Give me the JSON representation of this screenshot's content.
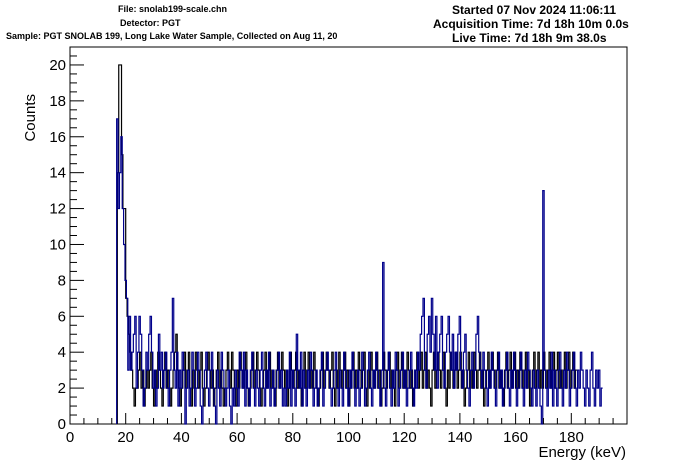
{
  "header": {
    "file": "File: snolab199-scale.chn",
    "detector": "Detector: PGT",
    "sample": "Sample: PGT SNOLAB 199, Long Lake Water Sample, Collected on Aug 11, 20",
    "started": "Started 07 Nov 2024 11:06:11",
    "acquisition": "Acquisition Time: 7d 18h 10m 0.0s",
    "live": "Live Time: 7d 18h 9m 38.0s"
  },
  "chart_data": {
    "type": "step-histogram",
    "xlabel": "Energy (keV)",
    "ylabel": "Counts",
    "xlim": [
      0,
      200
    ],
    "ylim": [
      0,
      21
    ],
    "x_ticks": [
      0,
      20,
      40,
      60,
      80,
      100,
      120,
      140,
      160,
      180
    ],
    "y_ticks": [
      0,
      2,
      4,
      6,
      8,
      10,
      12,
      14,
      16,
      18,
      20
    ],
    "grid": false,
    "series": [
      {
        "color": "#000000",
        "bin_start": 17.0,
        "bin_width": 0.5,
        "values": [
          14,
          20,
          20,
          15,
          12,
          12,
          7,
          6,
          5,
          4,
          3,
          2,
          1,
          2,
          2,
          3,
          4,
          2,
          3,
          1,
          2,
          3,
          2,
          3,
          4,
          2,
          1,
          3,
          2,
          4,
          3,
          2,
          1,
          3,
          4,
          2,
          3,
          2,
          1,
          2,
          3,
          4,
          5,
          3,
          2,
          1,
          2,
          3,
          4,
          2,
          3,
          4,
          2,
          1,
          3,
          2,
          4,
          3,
          2,
          3,
          4,
          2,
          1,
          2,
          3,
          4,
          3,
          2,
          3,
          1,
          2,
          3,
          4,
          2,
          3,
          2,
          1,
          2,
          3,
          4,
          3,
          2,
          4,
          3,
          2,
          1,
          3,
          2,
          4,
          3,
          2,
          3,
          4,
          2,
          1,
          2,
          3,
          4,
          2,
          3,
          4,
          3,
          2,
          1,
          2,
          3,
          4,
          2,
          3,
          4,
          2,
          3,
          2,
          1,
          3,
          4,
          2,
          3,
          4,
          3,
          2,
          3,
          1,
          2,
          4,
          3,
          2,
          3,
          4,
          2,
          3,
          2,
          1,
          3,
          4,
          2,
          3,
          4,
          2,
          3,
          2,
          4,
          3,
          2,
          1,
          2,
          3,
          4,
          2,
          3,
          4,
          3,
          2,
          3,
          4,
          2,
          1,
          3,
          2,
          4,
          3,
          2,
          3,
          4,
          2,
          3,
          1,
          2,
          3,
          4,
          2,
          3,
          2,
          4,
          3,
          2,
          3,
          4,
          2,
          1,
          3,
          2,
          4,
          3,
          2,
          3,
          4,
          2,
          3,
          1,
          2,
          4,
          3,
          2,
          3,
          4,
          2,
          3,
          2,
          1,
          3,
          4,
          2,
          3,
          4,
          2,
          3,
          2,
          4,
          3,
          2,
          3,
          1,
          2,
          3,
          4,
          2,
          3,
          4,
          2,
          3,
          4,
          2,
          3,
          2,
          1,
          3,
          4,
          2,
          3,
          4,
          3,
          2,
          3,
          4,
          2,
          1,
          3,
          2,
          4,
          3,
          2,
          3,
          4,
          2,
          3,
          4,
          2,
          3,
          1,
          2,
          3,
          4,
          2,
          3,
          2,
          4,
          3,
          2,
          3,
          4,
          2,
          3,
          1,
          2,
          3,
          4,
          2,
          3,
          4,
          3,
          2,
          3,
          4,
          2,
          3,
          2,
          1,
          3,
          4,
          2,
          3,
          4,
          2,
          3,
          4,
          2,
          3,
          2,
          4,
          3,
          2,
          3,
          4,
          2,
          3,
          1,
          2,
          3,
          4,
          2,
          3,
          4,
          2,
          3,
          2,
          4,
          3,
          2,
          3,
          4,
          2,
          3,
          4,
          2,
          3,
          4,
          2,
          3,
          2,
          3,
          4,
          2,
          3,
          4,
          2,
          3,
          4,
          2,
          3
        ]
      },
      {
        "color": "#00008b",
        "bin_start": 16.75,
        "bin_width": 0.5,
        "values": [
          17,
          12,
          14,
          16,
          12,
          10,
          8,
          7,
          3,
          6,
          3,
          4,
          5,
          6,
          2,
          4,
          6,
          5,
          3,
          1,
          2,
          4,
          3,
          5,
          6,
          4,
          2,
          3,
          1,
          2,
          5,
          3,
          4,
          2,
          3,
          4,
          2,
          1,
          3,
          4,
          7,
          3,
          2,
          4,
          1,
          3,
          2,
          4,
          3,
          0,
          2,
          3,
          1,
          2,
          4,
          3,
          1,
          2,
          4,
          3,
          1,
          0,
          2,
          3,
          4,
          2,
          1,
          3,
          4,
          2,
          1,
          0,
          3,
          2,
          1,
          4,
          3,
          2,
          1,
          2,
          3,
          1,
          0,
          2,
          1,
          3,
          2,
          1,
          4,
          3,
          2,
          4,
          1,
          3,
          2,
          1,
          3,
          4,
          2,
          1,
          3,
          2,
          1,
          3,
          4,
          2,
          1,
          3,
          2,
          4,
          1,
          2,
          3,
          1,
          2,
          3,
          4,
          2,
          3,
          1,
          2,
          1,
          3,
          2,
          4,
          1,
          3,
          2,
          1,
          5,
          3,
          2,
          4,
          1,
          3,
          2,
          1,
          3,
          2,
          4,
          3,
          1,
          2,
          3,
          1,
          2,
          3,
          4,
          1,
          2,
          3,
          4,
          3,
          2,
          1,
          2,
          3,
          4,
          2,
          1,
          3,
          2,
          1,
          4,
          3,
          2,
          1,
          3,
          2,
          4,
          3,
          1,
          2,
          3,
          1,
          2,
          4,
          3,
          1,
          2,
          3,
          4,
          2,
          1,
          3,
          2,
          4,
          3,
          2,
          1,
          3,
          9,
          2,
          1,
          3,
          4,
          2,
          1,
          3,
          2,
          4,
          3,
          1,
          2,
          3,
          4,
          2,
          3,
          1,
          2,
          3,
          4,
          2,
          1,
          3,
          2,
          4,
          3,
          5,
          6,
          7,
          3,
          2,
          5,
          6,
          4,
          7,
          5,
          3,
          6,
          2,
          4,
          5,
          6,
          3,
          2,
          4,
          5,
          6,
          4,
          3,
          5,
          2,
          4,
          3,
          5,
          6,
          3,
          2,
          4,
          5,
          3,
          2,
          1,
          3,
          4,
          2,
          3,
          5,
          6,
          4,
          3,
          2,
          4,
          3,
          2,
          1,
          3,
          2,
          4,
          3,
          2,
          1,
          3,
          4,
          2,
          3,
          1,
          2,
          3,
          4,
          2,
          1,
          3,
          2,
          4,
          3,
          1,
          2,
          3,
          4,
          2,
          1,
          3,
          2,
          4,
          3,
          2,
          1,
          3,
          2,
          1,
          3,
          2,
          1,
          0,
          13,
          3,
          2,
          1,
          3,
          2,
          4,
          1,
          3,
          2,
          1,
          3,
          4,
          2,
          1,
          3,
          2,
          4,
          3,
          1,
          2,
          3,
          4,
          2,
          1,
          3,
          2,
          4,
          3,
          2,
          1,
          3,
          2,
          1,
          3,
          4,
          2,
          1,
          3,
          2,
          3,
          1,
          2
        ]
      }
    ]
  }
}
